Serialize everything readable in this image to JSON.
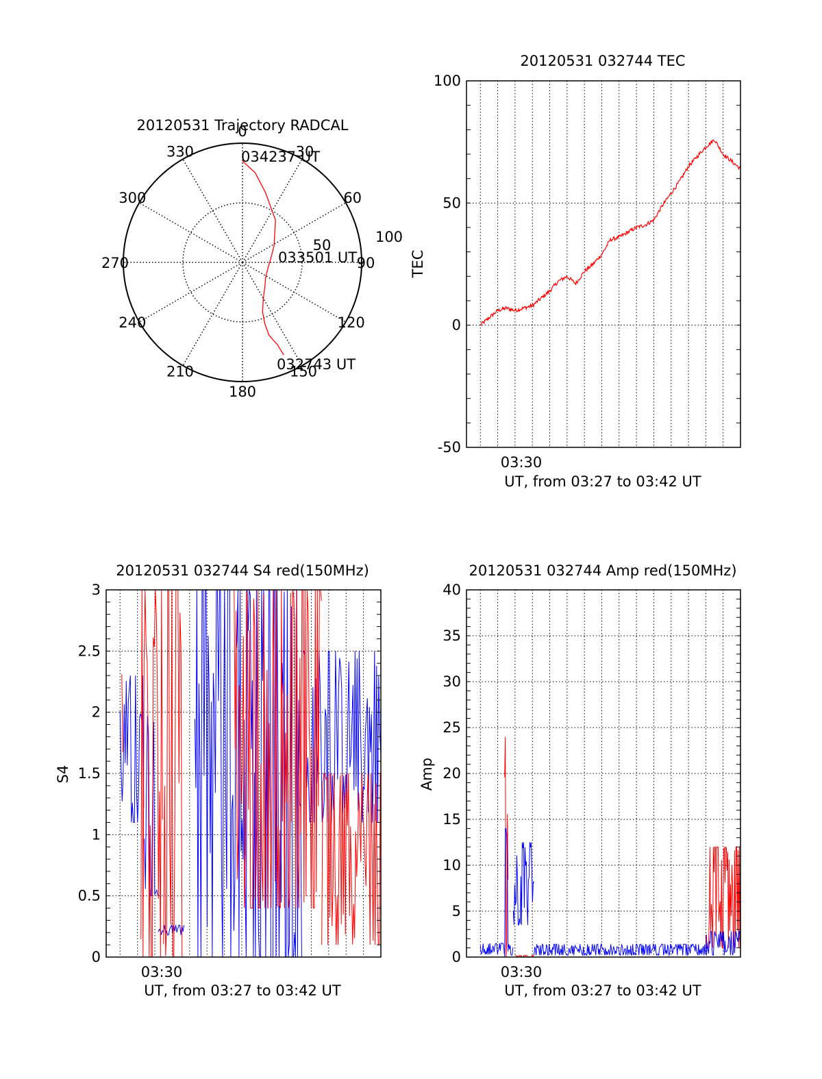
{
  "colors": {
    "trace_primary": "#ff0000",
    "trace_secondary": "#0000ff",
    "axis": "#000000",
    "grid": "#000000"
  },
  "chart_data": [
    {
      "id": "trajectory",
      "type": "scatter",
      "subtype": "polar",
      "title": "20120531 Trajectory RADCAL",
      "azimuth_labels": [
        "0",
        "30",
        "60",
        "90",
        "120",
        "150",
        "180",
        "210",
        "240",
        "270",
        "300",
        "330"
      ],
      "radius_labels": [
        "50",
        "100"
      ],
      "rlim": [
        0,
        100
      ],
      "radial_convention": "radius = 100 - elevation (deg), azimuth clockwise from north",
      "start_label": "032743 UT",
      "mid_label": "033501 UT",
      "end_label": "034237 UT",
      "track": {
        "azimuth": [
          156,
          157,
          160,
          160,
          158,
          150,
          138,
          122,
          100,
          82,
          62,
          38,
          18,
          8,
          0
        ],
        "radius": [
          85,
          75,
          65,
          55,
          45,
          35,
          28,
          23,
          22,
          24,
          30,
          45,
          62,
          76,
          85
        ]
      },
      "grid": true
    },
    {
      "id": "tec",
      "type": "line",
      "title": "20120531 032744 TEC",
      "ylabel": "TEC",
      "xlabel": "UT, from 03:27 to 03:42 UT",
      "xtick_label": "03:30",
      "x_range_minutes": [
        27.0,
        42.0
      ],
      "xlim": [
        26.2,
        42.0
      ],
      "ylim": [
        -50,
        100
      ],
      "yticks": [
        "-50",
        "0",
        "50",
        "100"
      ],
      "grid": true,
      "series": [
        {
          "color": "#ff0000",
          "x": [
            27.0,
            27.5,
            28.0,
            28.5,
            29.0,
            29.5,
            30.0,
            30.5,
            31.0,
            31.5,
            32.0,
            32.5,
            33.0,
            33.5,
            34.0,
            34.5,
            35.0,
            35.5,
            36.0,
            36.5,
            37.0,
            37.5,
            38.0,
            38.5,
            39.0,
            39.5,
            40.0,
            40.5,
            41.0,
            41.5,
            42.0
          ],
          "y": [
            0,
            3,
            6,
            7,
            6,
            7,
            8,
            11,
            14,
            18,
            20,
            17,
            22,
            25,
            29,
            35,
            36,
            38,
            40,
            41,
            43,
            49,
            54,
            59,
            65,
            69,
            73,
            76,
            70,
            67,
            64
          ]
        }
      ]
    },
    {
      "id": "s4",
      "type": "line",
      "title": "20120531 032744 S4 red(150MHz)",
      "ylabel": "S4",
      "xlabel": "UT, from 03:27 to 03:42 UT",
      "xtick_label": "03:30",
      "x_range_minutes": [
        27.0,
        42.0
      ],
      "xlim": [
        26.2,
        42.0
      ],
      "ylim": [
        0,
        3
      ],
      "yticks": [
        "0",
        "0.5",
        "1",
        "1.5",
        "2",
        "2.5",
        "3"
      ],
      "grid": true,
      "series": [
        {
          "color": "#0000ff",
          "segments": [
            {
              "x": [
                27.0,
                28.4
              ],
              "mean": 1.7,
              "spread": 0.6
            },
            {
              "x": [
                28.4,
                29.2
              ],
              "mean": 1.4,
              "spread": 0.9
            },
            {
              "x": [
                29.2,
                30.7
              ],
              "mean": 0.22,
              "spread": 0.04
            },
            {
              "x": [
                31.3,
                37.5
              ],
              "mean": 1.6,
              "spread": 1.8
            },
            {
              "x": [
                37.5,
                42.0
              ],
              "mean": 1.8,
              "spread": 0.7
            }
          ]
        },
        {
          "color": "#ff0000",
          "segments": [
            {
              "x": [
                27.1,
                27.2
              ],
              "mean": 1.5,
              "spread": 1.6
            },
            {
              "x": [
                28.2,
                29.5
              ],
              "mean": 1.5,
              "spread": 1.6
            },
            {
              "x": [
                29.5,
                30.6
              ],
              "mean": 1.6,
              "spread": 1.6
            },
            {
              "x": [
                33.5,
                38.6
              ],
              "mean": 1.8,
              "spread": 1.4
            },
            {
              "x": [
                38.6,
                42.0
              ],
              "mean": 0.8,
              "spread": 0.7
            }
          ]
        }
      ]
    },
    {
      "id": "amp",
      "type": "line",
      "title": "20120531 032744 Amp red(150MHz)",
      "ylabel": "Amp",
      "xlabel": "UT, from 03:27 to 03:42 UT",
      "xtick_label": "03:30",
      "x_range_minutes": [
        27.0,
        42.0
      ],
      "xlim": [
        26.2,
        42.0
      ],
      "ylim": [
        0,
        40
      ],
      "yticks": [
        "0",
        "5",
        "10",
        "15",
        "20",
        "25",
        "30",
        "35",
        "40"
      ],
      "grid": true,
      "series": [
        {
          "color": "#ff0000",
          "segments": [
            {
              "x": [
                28.4,
                28.6
              ],
              "mean": 12,
              "spread": 12
            },
            {
              "x": [
                29.0,
                30.1
              ],
              "mean": 0.1,
              "spread": 0.1
            },
            {
              "x": [
                40.0,
                42.0
              ],
              "mean": 6.5,
              "spread": 5.5
            }
          ]
        },
        {
          "color": "#0000ff",
          "segments": [
            {
              "x": [
                27.0,
                28.4
              ],
              "mean": 0.9,
              "spread": 0.6
            },
            {
              "x": [
                28.4,
                28.6
              ],
              "mean": 7,
              "spread": 7
            },
            {
              "x": [
                28.6,
                28.9
              ],
              "mean": 0.8,
              "spread": 0.6
            },
            {
              "x": [
                28.9,
                30.1
              ],
              "mean": 8,
              "spread": 4.5
            },
            {
              "x": [
                30.1,
                40.0
              ],
              "mean": 0.8,
              "spread": 0.6
            },
            {
              "x": [
                40.0,
                42.0
              ],
              "mean": 1.5,
              "spread": 1.3
            }
          ]
        }
      ]
    }
  ]
}
